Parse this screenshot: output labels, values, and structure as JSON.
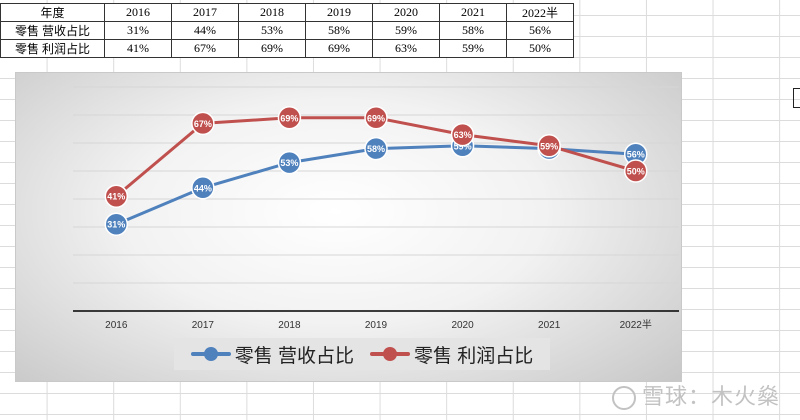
{
  "table": {
    "header": "年度",
    "years": [
      "2016",
      "2017",
      "2018",
      "2019",
      "2020",
      "2021",
      "2022半"
    ],
    "rows": [
      {
        "label": "零售 营收占比",
        "values": [
          "31%",
          "44%",
          "53%",
          "58%",
          "59%",
          "58%",
          "56%"
        ]
      },
      {
        "label": "零售 利润占比",
        "values": [
          "41%",
          "67%",
          "69%",
          "69%",
          "63%",
          "59%",
          "50%"
        ]
      }
    ]
  },
  "chart_data": {
    "type": "line",
    "categories": [
      "2016",
      "2017",
      "2018",
      "2019",
      "2020",
      "2021",
      "2022半"
    ],
    "series": [
      {
        "name": "零售 营收占比",
        "values": [
          31,
          44,
          53,
          58,
          59,
          58,
          56
        ],
        "labels": [
          "31%",
          "44%",
          "53%",
          "58%",
          "59%",
          "58%",
          "56%"
        ],
        "color": "#4f81bd"
      },
      {
        "name": "零售 利润占比",
        "values": [
          41,
          67,
          69,
          69,
          63,
          59,
          50
        ],
        "labels": [
          "41%",
          "67%",
          "69%",
          "69%",
          "63%",
          "59%",
          "50%"
        ],
        "color": "#c0504d"
      }
    ],
    "ylim": [
      0,
      80
    ],
    "grid": true,
    "legend": "bottom"
  },
  "watermark": "雪球：木火燊"
}
